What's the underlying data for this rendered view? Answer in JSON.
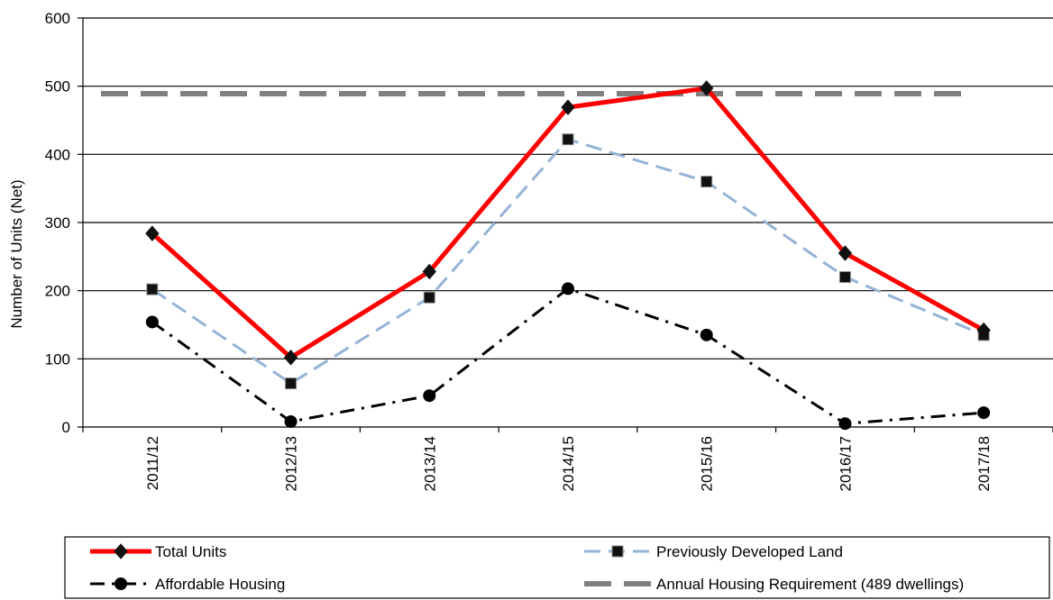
{
  "chart_data": {
    "type": "line",
    "title": "",
    "xlabel": "",
    "ylabel": "Number of Units (Net)",
    "ylim": [
      0,
      600
    ],
    "yticks": [
      "0",
      "100",
      "200",
      "300",
      "400",
      "500",
      "600"
    ],
    "categories": [
      "2011/12",
      "2012/13",
      "2013/14",
      "2014/15",
      "2015/16",
      "2016/17",
      "2017/18"
    ],
    "grid": "horizontal",
    "legend_position": "bottom",
    "series": [
      {
        "name": "Total Units",
        "values": [
          284,
          102,
          228,
          469,
          497,
          255,
          142
        ],
        "color": "#ff0000",
        "marker": "diamond",
        "style": "solid"
      },
      {
        "name": "Previously Developed Land",
        "values": [
          202,
          64,
          190,
          422,
          360,
          220,
          135
        ],
        "color": "#95b3d7",
        "marker": "square",
        "style": "dashed"
      },
      {
        "name": "Affordable Housing",
        "values": [
          154,
          8,
          46,
          203,
          135,
          5,
          21
        ],
        "color": "#000000",
        "marker": "circle",
        "style": "dashdot"
      },
      {
        "name": "Annual Housing Requirement (489 dwellings)",
        "values": [
          489,
          489,
          489,
          489,
          489,
          489,
          489
        ],
        "color": "#808080",
        "marker": "none",
        "style": "longdash"
      }
    ]
  }
}
